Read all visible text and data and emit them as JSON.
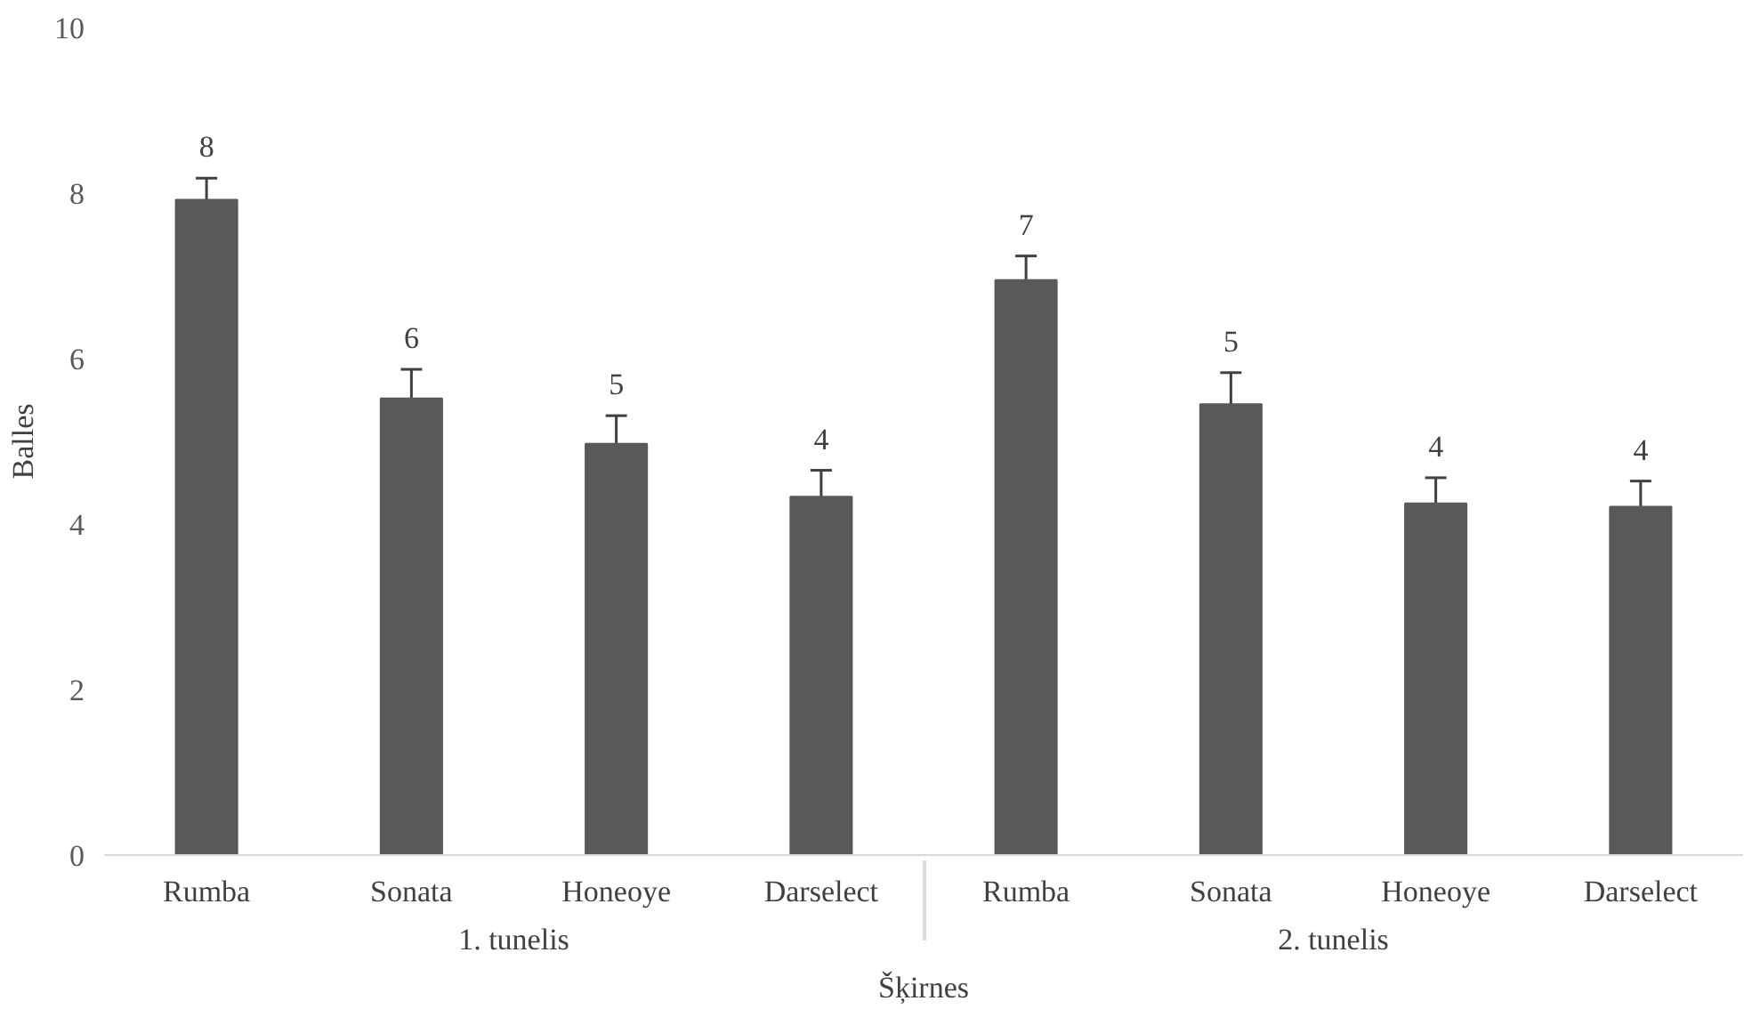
{
  "chart_data": {
    "type": "bar",
    "xlabel": "Šķirnes",
    "ylabel": "Balles",
    "categories": [
      "Rumba",
      "Sonata",
      "Honeoye",
      "Darselect",
      "Rumba",
      "Sonata",
      "Honeoye",
      "Darselect"
    ],
    "values": [
      7.92,
      5.52,
      4.97,
      4.33,
      6.95,
      5.45,
      4.25,
      4.21
    ],
    "errors": [
      [
        7.92,
        8.18
      ],
      [
        5.52,
        5.87
      ],
      [
        4.97,
        5.31
      ],
      [
        4.33,
        4.65
      ],
      [
        6.95,
        7.24
      ],
      [
        5.45,
        5.83
      ],
      [
        4.25,
        4.56
      ],
      [
        4.21,
        4.52
      ]
    ],
    "value_labels": [
      "8",
      "6",
      "5",
      "4",
      "7",
      "5",
      "4",
      "4"
    ],
    "color": "#595959",
    "annotations": [
      "1. tunelis",
      "2. tunelis"
    ],
    "ylim": [
      0,
      10
    ],
    "yticks": [
      0,
      2,
      4,
      6,
      8,
      10
    ],
    "grid": false
  }
}
